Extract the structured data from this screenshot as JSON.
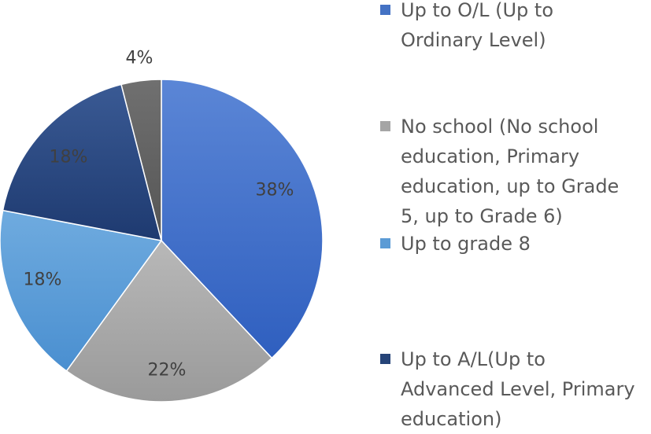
{
  "chart_data": {
    "type": "pie",
    "slices": [
      {
        "label": "Up to O/L (Up to Ordinary Level)",
        "value": 38,
        "data_label": "38%",
        "color": "#4472C4"
      },
      {
        "label": "No school (No school education, Primary education, up to Grade 5, up to Grade 6)",
        "value": 22,
        "data_label": "22%",
        "color": "#A5A5A5"
      },
      {
        "label": "Up to grade 8",
        "value": 18,
        "data_label": "18%",
        "color": "#5B9BD5"
      },
      {
        "label": "Up to A/L(Up to Advanced Level, Primary education)",
        "value": 18,
        "data_label": "18%",
        "color": "#264478"
      },
      {
        "label": "",
        "value": 4,
        "data_label": "4%",
        "color": "#636363"
      }
    ],
    "legend_position": "right",
    "legend": [
      {
        "lines": [
          "Up to O/L (Up to",
          "Ordinary Level)"
        ],
        "color": "#4472C4"
      },
      {
        "lines": [
          "No school (No school",
          "education, Primary",
          "education, up to Grade",
          "5, up to Grade 6)"
        ],
        "color": "#A5A5A5"
      },
      {
        "lines": [
          "Up to grade 8"
        ],
        "color": "#5B9BD5"
      },
      {
        "lines": [
          "Up to A/L(Up to",
          "Advanced Level, Primary",
          "education)"
        ],
        "color": "#264478"
      }
    ]
  }
}
